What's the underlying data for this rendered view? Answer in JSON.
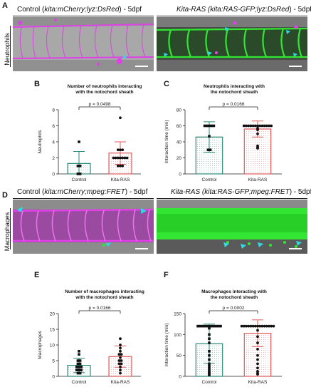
{
  "panels": {
    "A": "A",
    "B": "B",
    "C": "C",
    "D": "D",
    "E": "E",
    "F": "F"
  },
  "row_labels": {
    "neutrophils": "Neutrophils",
    "macrophages": "Macrophages"
  },
  "images": {
    "a_left_title_pre": "Control (",
    "a_left_title_it": "kita:mCherry;lyz:DsRed",
    "a_left_title_post": ") - 5dpf",
    "a_right_title_it1": "Kita-RAS (kita:RAS-GFP;lyz:DsRed",
    "a_right_title_post": ") - 5dpf",
    "d_left_title_pre": "Control (",
    "d_left_title_it": "kita:mCherry;mpeg:FRET",
    "d_left_title_post": ") - 5dpf",
    "d_right_title_it1": "Kita-RAS (kita:RAS-GFP;mpeg:FRET",
    "d_right_title_post": ") - 5dpf",
    "colors": {
      "magenta": "#e040e8",
      "green": "#33e633",
      "cyan": "#30d8e0",
      "gray": "#8a8a8a"
    }
  },
  "chart_data": [
    {
      "id": "B",
      "type": "scatter",
      "title": "Number of neutrophils interacting with the notochord sheath",
      "title_lines": [
        "Number of neutrophils interacting",
        "with the notochord sheath"
      ],
      "ylabel": "Neutrophils",
      "categories": [
        "Control",
        "Kita-RAS"
      ],
      "ylim": [
        0,
        8
      ],
      "yticks": [
        0,
        2,
        4,
        6,
        8
      ],
      "pvalue": "p = 0.0498",
      "bars": [
        1.3,
        2.6
      ],
      "errors": [
        1.5,
        1.4
      ],
      "points": [
        [
          0,
          0,
          1,
          1,
          4
        ],
        [
          1,
          1,
          1,
          2,
          2,
          2,
          2,
          2,
          2,
          2,
          3,
          3,
          3,
          7
        ]
      ],
      "colors": [
        "#2a8a7a",
        "#e05a5a"
      ]
    },
    {
      "id": "C",
      "type": "scatter",
      "title": "Neutrophils interacting with the notochord sheath",
      "title_lines": [
        "Neutrophils interacting with",
        "the notochord sheath"
      ],
      "ylabel": "Interaction time (min)",
      "categories": [
        "Control",
        "Kita-RAS"
      ],
      "ylim": [
        0,
        80
      ],
      "yticks": [
        0,
        20,
        40,
        60,
        80
      ],
      "pvalue": "p = 0.0166",
      "bars": [
        46,
        56
      ],
      "errors": [
        19,
        10
      ],
      "points": [
        [
          60,
          60,
          60,
          60,
          60,
          47,
          30,
          30
        ],
        [
          60,
          60,
          60,
          60,
          60,
          60,
          60,
          60,
          60,
          60,
          60,
          60,
          60,
          57,
          55,
          50,
          35,
          33,
          32
        ]
      ],
      "colors": [
        "#2a8a7a",
        "#e05a5a"
      ]
    },
    {
      "id": "E",
      "type": "scatter",
      "title": "Number of macrophages interacting with the notochord sheath",
      "title_lines": [
        "Number of macrophages interacting",
        "with the notochord sheath"
      ],
      "ylabel": "Macrophages",
      "categories": [
        "Control",
        "Kita-RAS"
      ],
      "ylim": [
        0,
        20
      ],
      "yticks": [
        0,
        5,
        10,
        15,
        20
      ],
      "pvalue": "p = 0.0166",
      "bars": [
        3.5,
        6.3
      ],
      "errors": [
        2.3,
        3.4
      ],
      "points": [
        [
          1,
          1,
          2,
          2,
          2,
          3,
          3,
          3,
          4,
          4,
          5,
          5,
          7,
          8
        ],
        [
          1,
          2,
          3,
          4,
          4,
          5,
          5,
          6,
          7,
          7,
          8,
          9,
          10,
          12
        ]
      ],
      "colors": [
        "#2a8a7a",
        "#e05a5a"
      ]
    },
    {
      "id": "F",
      "type": "scatter",
      "title": "Macrophages interacting with the notochord sheath",
      "title_lines": [
        "Macrophages interacting with",
        "the notochord sheath"
      ],
      "ylabel": "Interaction time (min)",
      "categories": [
        "Control",
        "Kita-RAS"
      ],
      "ylim": [
        0,
        150
      ],
      "yticks": [
        0,
        50,
        100,
        150
      ],
      "pvalue": "p = 0.0002",
      "bars": [
        78,
        103
      ],
      "errors": [
        47,
        32
      ],
      "points": [
        [
          120,
          120,
          120,
          120,
          120,
          120,
          120,
          120,
          120,
          120,
          120,
          115,
          100,
          90,
          80,
          60,
          50,
          40,
          30,
          25,
          20,
          15,
          10,
          8,
          5,
          3
        ],
        [
          120,
          120,
          120,
          120,
          120,
          120,
          120,
          120,
          120,
          120,
          120,
          120,
          120,
          120,
          120,
          110,
          95,
          80,
          65,
          50,
          40,
          30,
          20,
          12,
          8,
          5
        ]
      ],
      "colors": [
        "#2a8a7a",
        "#e05a5a"
      ]
    }
  ]
}
